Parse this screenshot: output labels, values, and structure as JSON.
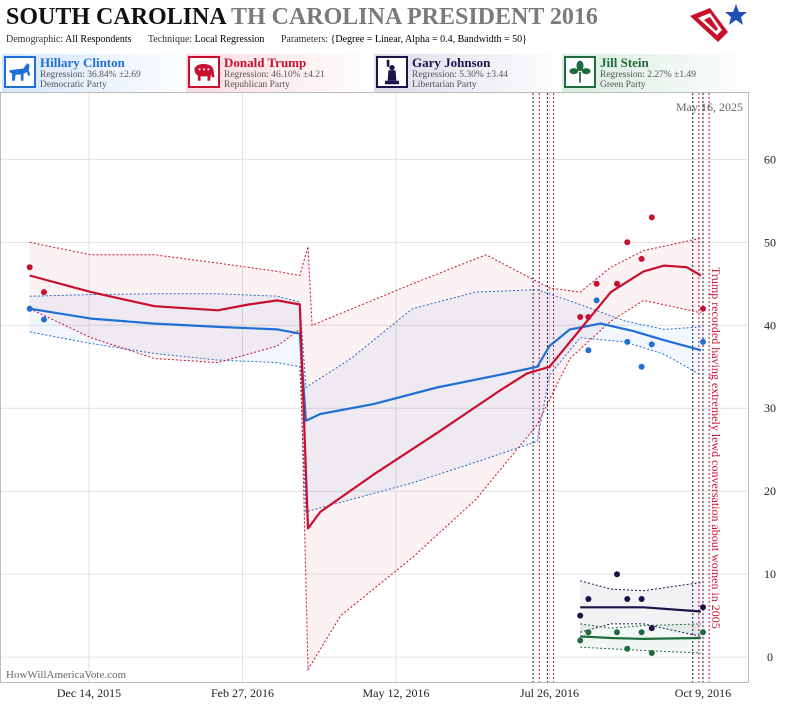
{
  "header": {
    "title_state": "SOUTH CAROLINA",
    "title_race": "TH CAROLINA PRESIDENT 2016",
    "demographic_label": "Demographic:",
    "demographic_value": "All Respondents",
    "technique_label": "Technique:",
    "technique_value": "Local Regression",
    "parameters_label": "Parameters:",
    "parameters_value": "{Degree = Linear, Alpha = 0.4, Bandwidth = 50}"
  },
  "candidates": [
    {
      "name": "Hillary Clinton",
      "regression": "Regression: 36.84% ±2.69",
      "party": "Democratic Party",
      "color": "#1f6fd6",
      "icon": "donkey-icon"
    },
    {
      "name": "Donald Trump",
      "regression": "Regression: 46.10% ±4.21",
      "party": "Republican Party",
      "color": "#c8102e",
      "icon": "elephant-icon"
    },
    {
      "name": "Gary Johnson",
      "regression": "Regression: 5.30% ±3.44",
      "party": "Libertarian Party",
      "color": "#1a1448",
      "icon": "liberty-icon"
    },
    {
      "name": "Jill Stein",
      "regression": "Regression: 2.27% ±1.49",
      "party": "Green Party",
      "color": "#1e6b3e",
      "icon": "leaf-icon"
    }
  ],
  "chart_data": {
    "type": "line",
    "x_axis": {
      "ticks": [
        "Dec 14, 2015",
        "Feb 27, 2016",
        "May 12, 2016",
        "Jul 26, 2016",
        "Oct 9, 2016"
      ],
      "range": [
        "2015-11-01",
        "2016-10-31"
      ]
    },
    "y_axis": {
      "ticks": [
        0,
        10,
        20,
        30,
        40,
        50,
        60
      ],
      "range": [
        -3,
        68
      ],
      "side": "right"
    },
    "grid": true,
    "date_stamp": "May 16, 2025",
    "watermark": "HowWillAmericaVote.com",
    "annotation": "Trump recorded having extremely lewd conversation about women in 2005",
    "vertical_markers": [
      "2016-07-18",
      "2016-07-21",
      "2016-07-25",
      "2016-07-28",
      "2016-10-04",
      "2016-10-07",
      "2016-10-09",
      "2016-10-12"
    ],
    "series": [
      {
        "name": "Hillary Clinton",
        "color": "#1f6fd6",
        "line": [
          [
            "2015-11-15",
            42
          ],
          [
            "2015-12-15",
            40.8
          ],
          [
            "2016-01-15",
            40.2
          ],
          [
            "2016-02-15",
            39.8
          ],
          [
            "2016-03-15",
            39.5
          ],
          [
            "2016-03-26",
            39
          ],
          [
            "2016-03-29",
            28.5
          ],
          [
            "2016-04-05",
            29.3
          ],
          [
            "2016-05-01",
            30.5
          ],
          [
            "2016-06-01",
            32.5
          ],
          [
            "2016-07-01",
            34
          ],
          [
            "2016-07-20",
            35
          ],
          [
            "2016-07-26",
            37.5
          ],
          [
            "2016-08-05",
            39.5
          ],
          [
            "2016-08-20",
            40.2
          ],
          [
            "2016-09-05",
            39.3
          ],
          [
            "2016-09-20",
            38.2
          ],
          [
            "2016-10-08",
            37
          ]
        ],
        "upper": [
          [
            "2015-11-15",
            43.5
          ],
          [
            "2015-12-15",
            43.7
          ],
          [
            "2016-01-15",
            43.8
          ],
          [
            "2016-02-15",
            43.8
          ],
          [
            "2016-03-15",
            43.5
          ],
          [
            "2016-03-26",
            42.8
          ],
          [
            "2016-03-29",
            32.5
          ],
          [
            "2016-04-20",
            36
          ],
          [
            "2016-05-20",
            42
          ],
          [
            "2016-06-20",
            44
          ],
          [
            "2016-07-20",
            44.3
          ],
          [
            "2016-08-10",
            42.5
          ],
          [
            "2016-09-01",
            40.5
          ],
          [
            "2016-09-20",
            39.5
          ],
          [
            "2016-10-08",
            39.8
          ]
        ],
        "lower": [
          [
            "2015-11-15",
            39.2
          ],
          [
            "2015-12-15",
            37.8
          ],
          [
            "2016-01-15",
            36.6
          ],
          [
            "2016-02-15",
            35.8
          ],
          [
            "2016-03-15",
            35.5
          ],
          [
            "2016-03-26",
            35
          ],
          [
            "2016-03-29",
            17.5
          ],
          [
            "2016-04-20",
            19
          ],
          [
            "2016-05-20",
            21
          ],
          [
            "2016-06-20",
            23.5
          ],
          [
            "2016-07-20",
            26
          ],
          [
            "2016-07-26",
            34
          ],
          [
            "2016-08-10",
            38.5
          ],
          [
            "2016-09-01",
            38
          ],
          [
            "2016-09-20",
            36.5
          ],
          [
            "2016-10-08",
            34
          ]
        ],
        "points": [
          [
            "2015-11-15",
            42
          ],
          [
            "2015-11-22",
            40.7
          ],
          [
            "2016-08-14",
            37
          ],
          [
            "2016-08-18",
            43
          ],
          [
            "2016-09-02",
            38
          ],
          [
            "2016-09-09",
            35
          ],
          [
            "2016-09-14",
            37.7
          ],
          [
            "2016-10-09",
            38
          ]
        ]
      },
      {
        "name": "Donald Trump",
        "color": "#c8102e",
        "line": [
          [
            "2015-11-15",
            46
          ],
          [
            "2015-12-15",
            44
          ],
          [
            "2016-01-15",
            42.3
          ],
          [
            "2016-02-15",
            41.8
          ],
          [
            "2016-03-01",
            42.5
          ],
          [
            "2016-03-15",
            43
          ],
          [
            "2016-03-26",
            42.5
          ],
          [
            "2016-03-30",
            15.5
          ],
          [
            "2016-04-05",
            17.5
          ],
          [
            "2016-05-01",
            22
          ],
          [
            "2016-06-01",
            27
          ],
          [
            "2016-07-01",
            32
          ],
          [
            "2016-07-15",
            34.2
          ],
          [
            "2016-07-26",
            35
          ],
          [
            "2016-08-10",
            39.5
          ],
          [
            "2016-08-25",
            44
          ],
          [
            "2016-09-10",
            46.5
          ],
          [
            "2016-09-20",
            47.2
          ],
          [
            "2016-10-01",
            47
          ],
          [
            "2016-10-08",
            46
          ]
        ],
        "upper": [
          [
            "2015-11-15",
            50
          ],
          [
            "2015-12-15",
            48.5
          ],
          [
            "2016-01-15",
            48.5
          ],
          [
            "2016-02-15",
            47.5
          ],
          [
            "2016-03-15",
            46.5
          ],
          [
            "2016-03-26",
            46
          ],
          [
            "2016-03-30",
            49.5
          ],
          [
            "2016-04-01",
            40
          ],
          [
            "2016-05-20",
            45
          ],
          [
            "2016-06-25",
            48.5
          ],
          [
            "2016-07-26",
            44.5
          ],
          [
            "2016-08-10",
            44
          ],
          [
            "2016-08-25",
            47
          ],
          [
            "2016-09-10",
            49
          ],
          [
            "2016-10-08",
            50.5
          ]
        ],
        "lower": [
          [
            "2015-11-15",
            42
          ],
          [
            "2015-12-15",
            38.5
          ],
          [
            "2016-01-15",
            36
          ],
          [
            "2016-02-15",
            35.5
          ],
          [
            "2016-03-15",
            37.5
          ],
          [
            "2016-03-26",
            39.5
          ],
          [
            "2016-03-30",
            -1.5
          ],
          [
            "2016-04-15",
            5
          ],
          [
            "2016-05-20",
            12
          ],
          [
            "2016-06-20",
            19
          ],
          [
            "2016-07-20",
            28
          ],
          [
            "2016-08-05",
            36
          ],
          [
            "2016-08-25",
            40.5
          ],
          [
            "2016-09-10",
            43
          ],
          [
            "2016-10-08",
            41.5
          ]
        ],
        "points": [
          [
            "2015-11-15",
            47
          ],
          [
            "2015-11-22",
            44
          ],
          [
            "2016-08-10",
            41
          ],
          [
            "2016-08-14",
            41
          ],
          [
            "2016-08-18",
            45
          ],
          [
            "2016-08-28",
            45
          ],
          [
            "2016-09-02",
            50
          ],
          [
            "2016-09-09",
            48
          ],
          [
            "2016-09-14",
            53
          ],
          [
            "2016-10-09",
            42
          ]
        ]
      },
      {
        "name": "Gary Johnson",
        "color": "#1a1448",
        "line": [
          [
            "2016-08-10",
            6
          ],
          [
            "2016-08-25",
            6
          ],
          [
            "2016-09-10",
            6
          ],
          [
            "2016-10-08",
            5.5
          ]
        ],
        "upper": [
          [
            "2016-08-10",
            9.2
          ],
          [
            "2016-08-25",
            8.2
          ],
          [
            "2016-09-10",
            8
          ],
          [
            "2016-10-08",
            9
          ]
        ],
        "lower": [
          [
            "2016-08-10",
            3
          ],
          [
            "2016-08-25",
            4
          ],
          [
            "2016-09-10",
            4
          ],
          [
            "2016-10-08",
            2.5
          ]
        ],
        "points": [
          [
            "2016-08-10",
            5
          ],
          [
            "2016-08-14",
            7
          ],
          [
            "2016-08-28",
            10
          ],
          [
            "2016-09-02",
            7
          ],
          [
            "2016-09-09",
            7
          ],
          [
            "2016-09-14",
            3.5
          ],
          [
            "2016-10-09",
            6
          ]
        ]
      },
      {
        "name": "Jill Stein",
        "color": "#1e6b3e",
        "line": [
          [
            "2016-08-10",
            2.5
          ],
          [
            "2016-08-25",
            2.3
          ],
          [
            "2016-09-10",
            2.2
          ],
          [
            "2016-10-08",
            2.3
          ]
        ],
        "upper": [
          [
            "2016-08-10",
            4
          ],
          [
            "2016-08-25",
            3.5
          ],
          [
            "2016-09-10",
            3.8
          ],
          [
            "2016-10-08",
            4
          ]
        ],
        "lower": [
          [
            "2016-08-10",
            1.2
          ],
          [
            "2016-08-25",
            1
          ],
          [
            "2016-09-10",
            0.8
          ],
          [
            "2016-10-08",
            0.5
          ]
        ],
        "points": [
          [
            "2016-08-10",
            2
          ],
          [
            "2016-08-14",
            3
          ],
          [
            "2016-08-28",
            3
          ],
          [
            "2016-09-02",
            1
          ],
          [
            "2016-09-09",
            3
          ],
          [
            "2016-09-14",
            0.5
          ],
          [
            "2016-10-09",
            3
          ]
        ]
      }
    ]
  }
}
